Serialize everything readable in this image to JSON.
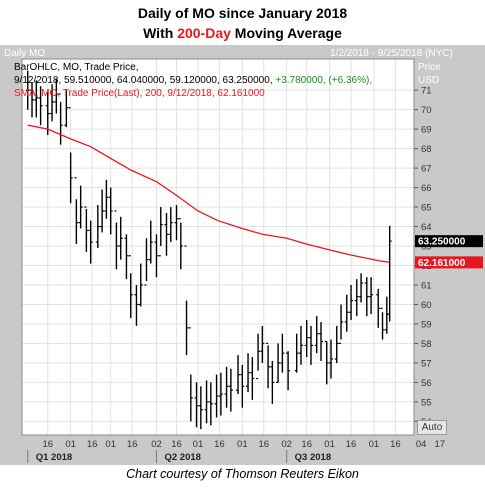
{
  "title_line1": "Daily of MO since January 2018",
  "title_line2_prefix": "With ",
  "title_line2_accent": "200-Day",
  "title_line2_suffix": " Moving Average",
  "credit": "Chart courtesy of Thomson Reuters Eikon",
  "panel": {
    "name": "Daily MO",
    "date_range": "1/2/2018 - 9/25/2018 (NYC)",
    "price_label": "Price",
    "currency": "USD",
    "auto_button": "Auto"
  },
  "legend": {
    "bar_line": "BarOHLC, MO, Trade Price,",
    "bar_values": "9/12/2018, 59.510000, 64.040000, 59.120000, 63.250000,",
    "bar_change": "+3.780000, (+6.36%),",
    "sma_line": "SMA, MO, Trade Price(Last),  200,  9/12/2018, 62.161000"
  },
  "colors": {
    "plot_bg": "#ffffff",
    "frame_bg": "#c9c9c9",
    "price_bars": "#000000",
    "sma": "#e8171f",
    "accent": "#e8171f",
    "change_text": "#1a8f1a"
  },
  "chart_data": {
    "type": "line",
    "series": [
      {
        "name": "BarOHLC, MO, Trade Price",
        "style": "ohlc-bars",
        "x": [
          "2018-01-02",
          "2018-01-05",
          "2018-01-08",
          "2018-01-11",
          "2018-01-16",
          "2018-01-19",
          "2018-01-22",
          "2018-01-25",
          "2018-01-29",
          "2018-02-01",
          "2018-02-05",
          "2018-02-08",
          "2018-02-12",
          "2018-02-15",
          "2018-02-20",
          "2018-02-23",
          "2018-02-26",
          "2018-03-01",
          "2018-03-05",
          "2018-03-08",
          "2018-03-12",
          "2018-03-15",
          "2018-03-19",
          "2018-03-22",
          "2018-03-26",
          "2018-03-29",
          "2018-04-02",
          "2018-04-05",
          "2018-04-09",
          "2018-04-12",
          "2018-04-16",
          "2018-04-19",
          "2018-04-23",
          "2018-04-26",
          "2018-04-30",
          "2018-05-03",
          "2018-05-07",
          "2018-05-10",
          "2018-05-14",
          "2018-05-17",
          "2018-05-21",
          "2018-05-24",
          "2018-05-29",
          "2018-06-01",
          "2018-06-05",
          "2018-06-08",
          "2018-06-12",
          "2018-06-15",
          "2018-06-19",
          "2018-06-22",
          "2018-06-26",
          "2018-06-29",
          "2018-07-03",
          "2018-07-09",
          "2018-07-12",
          "2018-07-16",
          "2018-07-19",
          "2018-07-23",
          "2018-07-26",
          "2018-07-30",
          "2018-08-02",
          "2018-08-06",
          "2018-08-09",
          "2018-08-13",
          "2018-08-16",
          "2018-08-20",
          "2018-08-23",
          "2018-08-27",
          "2018-08-30",
          "2018-09-04",
          "2018-09-07",
          "2018-09-10",
          "2018-09-12"
        ],
        "close": [
          71.0,
          70.5,
          70.6,
          70.2,
          69.8,
          70.4,
          70.8,
          69.2,
          70.1,
          66.5,
          64.2,
          65.0,
          63.8,
          63.2,
          64.0,
          64.8,
          65.5,
          64.8,
          63.0,
          63.4,
          62.5,
          60.5,
          60.0,
          61.0,
          62.3,
          63.2,
          62.5,
          64.1,
          63.6,
          64.2,
          64.4,
          63.0,
          58.8,
          55.2,
          54.8,
          54.6,
          55.0,
          54.9,
          55.3,
          55.4,
          55.8,
          55.6,
          56.4,
          55.8,
          56.5,
          56.2,
          57.6,
          58.0,
          56.8,
          56.0,
          57.0,
          57.5,
          56.6,
          57.5,
          57.9,
          58.3,
          57.9,
          58.5,
          58.1,
          57.0,
          57.2,
          58.0,
          59.1,
          59.6,
          60.2,
          60.4,
          61.1,
          60.4,
          60.5,
          59.8,
          58.7,
          59.5,
          63.25
        ],
        "high": [
          72.0,
          71.4,
          71.5,
          71.2,
          70.9,
          71.3,
          71.6,
          70.4,
          71.0,
          67.8,
          65.4,
          66.1,
          64.9,
          64.3,
          65.1,
          65.9,
          66.4,
          66.0,
          64.2,
          64.5,
          63.6,
          61.6,
          61.0,
          62.1,
          63.4,
          64.3,
          63.6,
          65.0,
          64.7,
          65.0,
          65.1,
          64.2,
          60.2,
          56.4,
          56.0,
          55.8,
          56.1,
          56.0,
          56.4,
          56.5,
          56.8,
          56.7,
          57.4,
          56.9,
          57.5,
          57.3,
          58.5,
          58.9,
          57.9,
          57.1,
          58.0,
          58.5,
          57.6,
          58.5,
          58.9,
          59.2,
          58.9,
          59.4,
          59.1,
          58.1,
          58.2,
          58.9,
          60.0,
          60.5,
          61.0,
          61.3,
          61.6,
          61.4,
          61.4,
          60.8,
          59.6,
          60.4,
          64.04
        ],
        "low": [
          70.0,
          69.6,
          69.6,
          69.2,
          68.7,
          69.4,
          69.8,
          68.2,
          69.1,
          65.2,
          63.1,
          63.9,
          62.7,
          62.1,
          62.9,
          63.7,
          64.4,
          63.6,
          61.8,
          62.3,
          61.3,
          59.3,
          58.9,
          59.9,
          61.2,
          62.1,
          61.4,
          63.0,
          62.5,
          63.2,
          63.3,
          61.8,
          57.4,
          54.0,
          53.7,
          53.6,
          53.9,
          53.8,
          54.2,
          54.3,
          54.7,
          54.5,
          55.4,
          54.7,
          55.5,
          55.1,
          56.6,
          57.0,
          55.7,
          54.9,
          56.0,
          56.5,
          55.6,
          56.5,
          56.9,
          57.3,
          56.9,
          57.5,
          57.1,
          55.9,
          56.2,
          57.0,
          58.2,
          58.6,
          59.2,
          59.4,
          60.1,
          59.4,
          59.5,
          58.8,
          58.2,
          58.5,
          59.12
        ]
      },
      {
        "name": "SMA, MO, Trade Price(Last), 200",
        "style": "line",
        "x": [
          "2018-01-02",
          "2018-01-16",
          "2018-02-01",
          "2018-02-15",
          "2018-03-01",
          "2018-03-15",
          "2018-04-02",
          "2018-04-16",
          "2018-05-01",
          "2018-05-15",
          "2018-06-01",
          "2018-06-15",
          "2018-07-02",
          "2018-07-16",
          "2018-08-01",
          "2018-08-15",
          "2018-09-04",
          "2018-09-12"
        ],
        "values": [
          69.2,
          69.0,
          68.5,
          68.1,
          67.5,
          66.9,
          66.3,
          65.6,
          64.8,
          64.3,
          63.9,
          63.6,
          63.4,
          63.1,
          62.8,
          62.55,
          62.25,
          62.161
        ]
      }
    ],
    "ylim": [
      53.3,
      72.6
    ],
    "y_ticks": [
      54,
      55,
      56,
      57,
      58,
      59,
      60,
      61,
      62,
      63,
      64,
      65,
      66,
      67,
      68,
      69,
      70,
      71
    ],
    "x_tick_labels": [
      "16",
      "01",
      "16",
      "01",
      "16",
      "02",
      "16",
      "01",
      "16",
      "01",
      "16",
      "02",
      "16",
      "01",
      "16",
      "01",
      "16",
      "04",
      "17"
    ],
    "x_tick_dates": [
      "2018-01-16",
      "2018-02-01",
      "2018-02-16",
      "2018-03-01",
      "2018-03-16",
      "2018-04-02",
      "2018-04-16",
      "2018-05-01",
      "2018-05-16",
      "2018-06-01",
      "2018-06-16",
      "2018-07-02",
      "2018-07-16",
      "2018-08-01",
      "2018-08-16",
      "2018-09-01",
      "2018-09-16",
      "2018-10-04",
      "2018-10-17"
    ],
    "quarter_labels": [
      {
        "label": "Q1 2018",
        "start": "2018-01-02"
      },
      {
        "label": "Q2 2018",
        "start": "2018-04-02"
      },
      {
        "label": "Q3 2018",
        "start": "2018-07-02"
      }
    ],
    "price_tags": [
      {
        "label": "63.250000",
        "value": 63.25,
        "style": "last"
      },
      {
        "label": "62.161000",
        "value": 62.161,
        "style": "sma"
      }
    ],
    "grid": true,
    "legend_position": "top-left"
  }
}
